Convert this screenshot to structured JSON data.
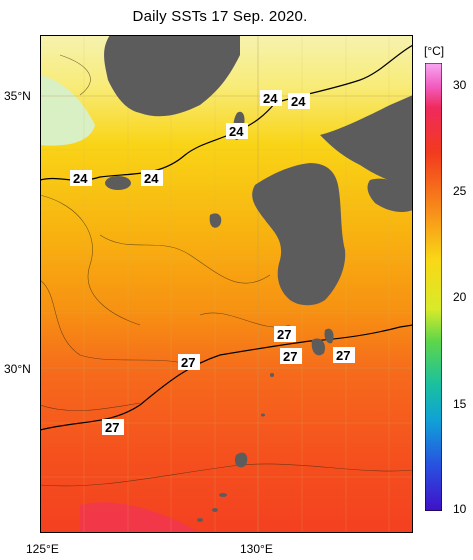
{
  "title": "Daily SSTs 17 Sep. 2020.",
  "lat_labels": [
    "35°N",
    "30°N"
  ],
  "lon_labels": [
    "125°E",
    "130°E"
  ],
  "colorbar": {
    "unit": "[°C]",
    "ticks": [
      "30",
      "25",
      "20",
      "15",
      "10"
    ]
  },
  "contour_labels": [
    "24",
    "24",
    "24",
    "24",
    "24",
    "27",
    "27",
    "27",
    "27",
    "27"
  ],
  "colors": {
    "land": "#5c5c5c",
    "sea_warm": "#f76a1a",
    "sea_cool": "#f9d816"
  }
}
